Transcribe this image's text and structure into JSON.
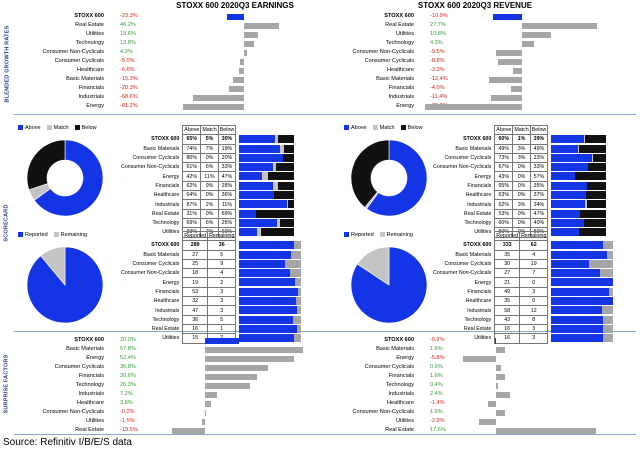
{
  "headers": {
    "earnings": "STOXX 600 2020Q3 EARNINGS",
    "revenue": "STOXX 600 2020Q3 REVENUE"
  },
  "sections": {
    "growth": "BLENDED GROWTH RATES",
    "scorecard": "SCORECARD",
    "surprise": "SURPRISE FACTORS"
  },
  "source": "Source: Refinitiv I/B/E/S data",
  "colors": {
    "blue": "#1435e6",
    "grey": "#a6a6a6",
    "black": "#111111",
    "pos": "#3a9a3a",
    "neg": "#d32020"
  },
  "legend": {
    "above": "Above",
    "match": "Match",
    "below": "Below",
    "reported": "Reported",
    "remaining": "Remaining"
  },
  "table_headers": {
    "above": "Above",
    "match": "Match",
    "below": "Below",
    "reported": "Reported",
    "remaining": "Remaining"
  },
  "chart_data": [
    {
      "type": "bar",
      "id": "earnings_growth",
      "categories": [
        "STOXX 600",
        "Real Estate",
        "Utilities",
        "Technology",
        "Consumer Non-Cyclicals",
        "Consumer Cyclicals",
        "Healthcare",
        "Basic Materials",
        "Financials",
        "Industrials",
        "Energy"
      ],
      "labels": [
        "-23.3%",
        "46.2%",
        "18.6%",
        "13.8%",
        "4.3%",
        "-5.0%",
        "-6.6%",
        "-15.3%",
        "-20.3%",
        "-68.6%",
        "-81.2%"
      ],
      "values": [
        -23.3,
        46.2,
        18.6,
        13.8,
        4.3,
        -5.0,
        -6.6,
        -15.3,
        -20.3,
        -68.6,
        -81.2
      ]
    },
    {
      "type": "bar",
      "id": "revenue_growth",
      "categories": [
        "STOXX 600",
        "Real Estate",
        "Utilities",
        "Technology",
        "Consumer Non-Cyclicals",
        "Consumer Cyclicals",
        "Healthcare",
        "Basic Materials",
        "Financials",
        "Industrials",
        "Energy"
      ],
      "labels": [
        "-10.9%",
        "27.7%",
        "10.8%",
        "4.3%",
        "-9.5%",
        "-8.8%",
        "-3.3%",
        "-12.4%",
        "-4.0%",
        "-11.4%",
        "-35.8%"
      ],
      "values": [
        -10.9,
        27.7,
        10.8,
        4.3,
        -9.5,
        -8.8,
        -3.3,
        -12.4,
        -4.0,
        -11.4,
        -35.8
      ]
    },
    {
      "type": "table",
      "id": "earnings_scorecard",
      "categories": [
        "STOXX 600",
        "Basic Materials",
        "Consumer Cyclicals",
        "Consumer Non-Cyclicals",
        "Energy",
        "Financials",
        "Healthcare",
        "Industrials",
        "Real Estate",
        "Technology",
        "Utilities"
      ],
      "labels": [
        [
          "65%",
          "5%",
          "30%"
        ],
        [
          "74%",
          "7%",
          "19%"
        ],
        [
          "80%",
          "0%",
          "20%"
        ],
        [
          "61%",
          "6%",
          "33%"
        ],
        [
          "42%",
          "11%",
          "47%"
        ],
        [
          "62%",
          "9%",
          "28%"
        ],
        [
          "64%",
          "0%",
          "36%"
        ],
        [
          "87%",
          "2%",
          "11%"
        ],
        [
          "31%",
          "0%",
          "69%"
        ],
        [
          "69%",
          "6%",
          "25%"
        ],
        [
          "33%",
          "7%",
          "60%"
        ]
      ],
      "above": [
        65,
        74,
        80,
        61,
        42,
        62,
        64,
        87,
        31,
        69,
        33
      ],
      "match": [
        5,
        7,
        0,
        6,
        11,
        9,
        0,
        2,
        0,
        6,
        7
      ],
      "below": [
        30,
        19,
        20,
        33,
        47,
        28,
        36,
        11,
        69,
        25,
        60
      ]
    },
    {
      "type": "table",
      "id": "revenue_scorecard",
      "categories": [
        "STOXX 600",
        "Basic Materials",
        "Consumer Cyclicals",
        "Consumer Non-Cyclicals",
        "Energy",
        "Financials",
        "Healthcare",
        "Industrials",
        "Real Estate",
        "Technology",
        "Utilities"
      ],
      "labels": [
        [
          "60%",
          "1%",
          "39%"
        ],
        [
          "49%",
          "3%",
          "49%"
        ],
        [
          "73%",
          "3%",
          "23%"
        ],
        [
          "67%",
          "0%",
          "33%"
        ],
        [
          "43%",
          "0%",
          "57%"
        ],
        [
          "65%",
          "0%",
          "35%"
        ],
        [
          "63%",
          "0%",
          "37%"
        ],
        [
          "62%",
          "3%",
          "34%"
        ],
        [
          "53%",
          "0%",
          "47%"
        ],
        [
          "60%",
          "0%",
          "40%"
        ],
        [
          "50%",
          "0%",
          "50%"
        ]
      ],
      "above": [
        60,
        49,
        73,
        67,
        43,
        65,
        63,
        62,
        53,
        60,
        50
      ],
      "match": [
        1,
        3,
        3,
        0,
        0,
        0,
        0,
        3,
        0,
        0,
        0
      ],
      "below": [
        39,
        49,
        23,
        33,
        57,
        35,
        37,
        34,
        47,
        40,
        50
      ]
    },
    {
      "type": "pie",
      "id": "earnings_scorecard_pie",
      "categories": [
        "Above",
        "Match",
        "Below"
      ],
      "values": [
        65,
        5,
        30
      ]
    },
    {
      "type": "pie",
      "id": "revenue_scorecard_pie",
      "categories": [
        "Above",
        "Match",
        "Below"
      ],
      "values": [
        60,
        1,
        39
      ]
    },
    {
      "type": "table",
      "id": "earnings_reported",
      "categories": [
        "STOXX 600",
        "Basic Materials",
        "Consumer Cyclicals",
        "Consumer Non-Cyclicals",
        "Energy",
        "Financials",
        "Healthcare",
        "Industrials",
        "Technology",
        "Real Estate",
        "Utilities"
      ],
      "labels": [
        [
          "289",
          "36"
        ],
        [
          "27",
          "5"
        ],
        [
          "25",
          "9"
        ],
        [
          "18",
          "4"
        ],
        [
          "19",
          "2"
        ],
        [
          "53",
          "3"
        ],
        [
          "32",
          "3"
        ],
        [
          "47",
          "3"
        ],
        [
          "36",
          "5"
        ],
        [
          "16",
          "1"
        ],
        [
          "15",
          "2"
        ]
      ],
      "reported": [
        289,
        27,
        25,
        18,
        19,
        53,
        32,
        47,
        36,
        16,
        15
      ],
      "remaining": [
        36,
        5,
        9,
        4,
        2,
        3,
        3,
        3,
        5,
        1,
        2
      ]
    },
    {
      "type": "table",
      "id": "revenue_reported",
      "categories": [
        "STOXX 600",
        "Basic Materials",
        "Consumer Cyclicals",
        "Consumer Non-Cyclicals",
        "Energy",
        "Financials",
        "Healthcare",
        "Industrials",
        "Technology",
        "Real Estate",
        "Utilities"
      ],
      "labels": [
        [
          "333",
          "62"
        ],
        [
          "35",
          "4"
        ],
        [
          "30",
          "19"
        ],
        [
          "27",
          "7"
        ],
        [
          "21",
          "0"
        ],
        [
          "49",
          "3"
        ],
        [
          "35",
          "0"
        ],
        [
          "58",
          "12"
        ],
        [
          "43",
          "8"
        ],
        [
          "16",
          "3"
        ],
        [
          "16",
          "3"
        ]
      ],
      "reported": [
        333,
        35,
        30,
        27,
        21,
        49,
        35,
        58,
        43,
        16,
        16
      ],
      "remaining": [
        62,
        4,
        19,
        7,
        0,
        3,
        0,
        12,
        8,
        3,
        3
      ]
    },
    {
      "type": "pie",
      "id": "earnings_reported_pie",
      "categories": [
        "Reported",
        "Remaining"
      ],
      "values": [
        289,
        36
      ]
    },
    {
      "type": "pie",
      "id": "revenue_reported_pie",
      "categories": [
        "Reported",
        "Remaining"
      ],
      "values": [
        333,
        62
      ]
    },
    {
      "type": "bar",
      "id": "earnings_surprise",
      "categories": [
        "STOXX 600",
        "Basic Materials",
        "Energy",
        "Consumer Cyclicals",
        "Financials",
        "Technology",
        "Industrials",
        "Healthcare",
        "Consumer Non-Cyclicals",
        "Utilities",
        "Real Estate"
      ],
      "labels": [
        "20.0%",
        "57.8%",
        "52.4%",
        "36.8%",
        "30.6%",
        "26.3%",
        "7.2%",
        "3.8%",
        "-0.2%",
        "-1.5%",
        "-19.5%"
      ],
      "values": [
        20.0,
        57.8,
        52.4,
        36.8,
        30.6,
        26.3,
        7.2,
        3.8,
        -0.2,
        -1.5,
        -19.5
      ]
    },
    {
      "type": "bar",
      "id": "revenue_surprise",
      "categories": [
        "STOXX 600",
        "Basic Materials",
        "Energy",
        "Consumer Cyclicals",
        "Financials",
        "Technology",
        "Industrials",
        "Healthcare",
        "Consumer Non-Cyclicals",
        "Utilities",
        "Real Estate"
      ],
      "labels": [
        "-0.2%",
        "1.6%",
        "-5.8%",
        "0.9%",
        "1.6%",
        "0.4%",
        "2.4%",
        "-1.4%",
        "1.5%",
        "-2.9%",
        "17.6%"
      ],
      "values": [
        -0.2,
        1.6,
        -5.8,
        0.9,
        1.6,
        0.4,
        2.4,
        -1.4,
        1.5,
        -2.9,
        17.6
      ]
    }
  ]
}
